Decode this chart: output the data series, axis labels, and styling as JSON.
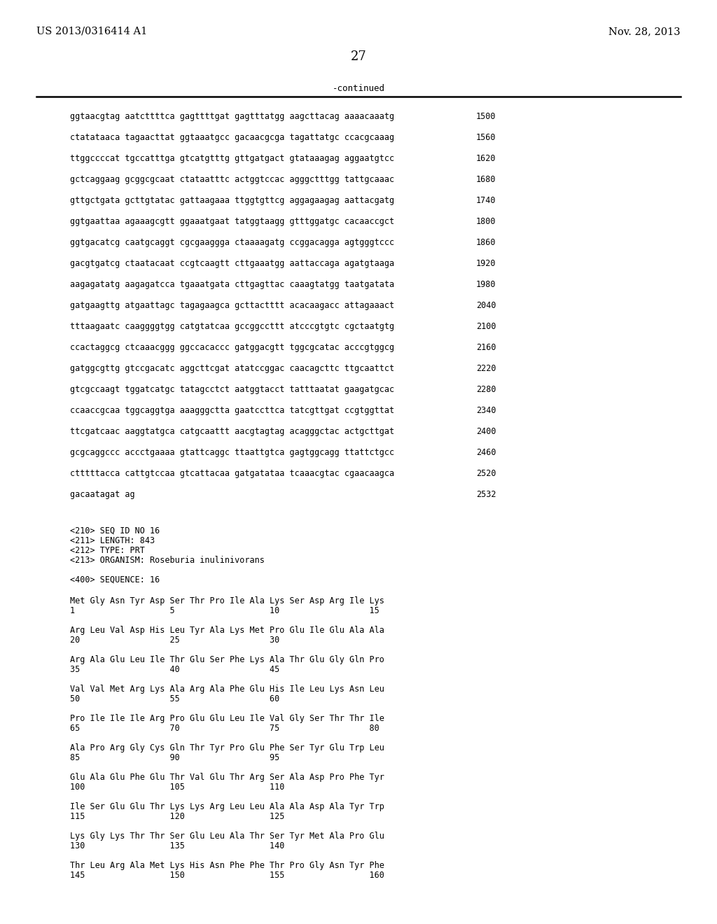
{
  "header_left": "US 2013/0316414 A1",
  "header_right": "Nov. 28, 2013",
  "page_number": "27",
  "continued_label": "-continued",
  "background_color": "#ffffff",
  "sequence_lines": [
    [
      "ggtaacgtag aatcttttca gagttttgat gagtttatgg aagcttacag aaaacaaatg",
      "1500"
    ],
    [
      "ctatataaca tagaacttat ggtaaatgcc gacaacgcga tagattatgc ccacgcaaag",
      "1560"
    ],
    [
      "ttggccccat tgccatttga gtcatgtttg gttgatgact gtataaagag aggaatgtcc",
      "1620"
    ],
    [
      "gctcaggaag gcggcgcaat ctataatttc actggtccac agggctttgg tattgcaaac",
      "1680"
    ],
    [
      "gttgctgata gcttgtatac gattaagaaa ttggtgttcg aggagaagag aattacgatg",
      "1740"
    ],
    [
      "ggtgaattaa agaaagcgtt ggaaatgaat tatggtaagg gtttggatgc cacaaccgct",
      "1800"
    ],
    [
      "ggtgacatcg caatgcaggt cgcgaaggga ctaaaagatg ccggacagga agtgggtccc",
      "1860"
    ],
    [
      "gacgtgatcg ctaatacaat ccgtcaagtt cttgaaatgg aattaccaga agatgtaaga",
      "1920"
    ],
    [
      "aagagatatg aagagatcca tgaaatgata cttgagttac caaagtatgg taatgatata",
      "1980"
    ],
    [
      "gatgaagttg atgaattagc tagagaagca gcttactttt acacaagacc attagaaact",
      "2040"
    ],
    [
      "tttaagaatc caaggggtgg catgtatcaa gccggccttt atcccgtgtc cgctaatgtg",
      "2100"
    ],
    [
      "ccactaggcg ctcaaacggg ggccacaccc gatggacgtt tggcgcatac acccgtggcg",
      "2160"
    ],
    [
      "gatggcgttg gtccgacatc aggcttcgat atatccggac caacagcttc ttgcaattct",
      "2220"
    ],
    [
      "gtcgccaagt tggatcatgc tatagcctct aatggtacct tatttaatat gaagatgcac",
      "2280"
    ],
    [
      "ccaaccgcaa tggcaggtga aaagggctta gaatccttca tatcgttgat ccgtggttat",
      "2340"
    ],
    [
      "ttcgatcaac aaggtatgca catgcaattt aacgtagtag acagggctac actgcttgat",
      "2400"
    ],
    [
      "gcgcaggccc accctgaaaa gtattcaggc ttaattgtca gagtggcagg ttattctgcc",
      "2460"
    ],
    [
      "ctttttacca cattgtccaa gtcattacaa gatgatataa tcaaacgtac cgaacaagca",
      "2520"
    ],
    [
      "gacaatagat ag",
      "2532"
    ]
  ],
  "seq_info_lines": [
    "<210> SEQ ID NO 16",
    "<211> LENGTH: 843",
    "<212> TYPE: PRT",
    "<213> ORGANISM: Roseburia inulinivorans",
    "",
    "<400> SEQUENCE: 16"
  ],
  "aa_rows": [
    {
      "text": "Met Gly Asn Tyr Asp Ser Thr Pro Ile Ala Lys Ser Asp Arg Ile Lys",
      "nums": "1                   5                   10                  15"
    },
    {
      "text": "Arg Leu Val Asp His Leu Tyr Ala Lys Met Pro Glu Ile Glu Ala Ala",
      "nums": "20                  25                  30"
    },
    {
      "text": "Arg Ala Glu Leu Ile Thr Glu Ser Phe Lys Ala Thr Glu Gly Gln Pro",
      "nums": "35                  40                  45"
    },
    {
      "text": "Val Val Met Arg Lys Ala Arg Ala Phe Glu His Ile Leu Lys Asn Leu",
      "nums": "50                  55                  60"
    },
    {
      "text": "Pro Ile Ile Ile Arg Pro Glu Glu Leu Ile Val Gly Ser Thr Thr Ile",
      "nums": "65                  70                  75                  80"
    },
    {
      "text": "Ala Pro Arg Gly Cys Gln Thr Tyr Pro Glu Phe Ser Tyr Glu Trp Leu",
      "nums": "85                  90                  95"
    },
    {
      "text": "Glu Ala Glu Phe Glu Thr Val Glu Thr Arg Ser Ala Asp Pro Phe Tyr",
      "nums": "100                 105                 110"
    },
    {
      "text": "Ile Ser Glu Glu Thr Lys Lys Arg Leu Leu Ala Ala Asp Ala Tyr Trp",
      "nums": "115                 120                 125"
    },
    {
      "text": "Lys Gly Lys Thr Thr Ser Glu Leu Ala Thr Ser Tyr Met Ala Pro Glu",
      "nums": "130                 135                 140"
    },
    {
      "text": "Thr Leu Arg Ala Met Lys His Asn Phe Phe Thr Pro Gly Asn Tyr Phe",
      "nums": "145                 150                 155                 160"
    }
  ]
}
